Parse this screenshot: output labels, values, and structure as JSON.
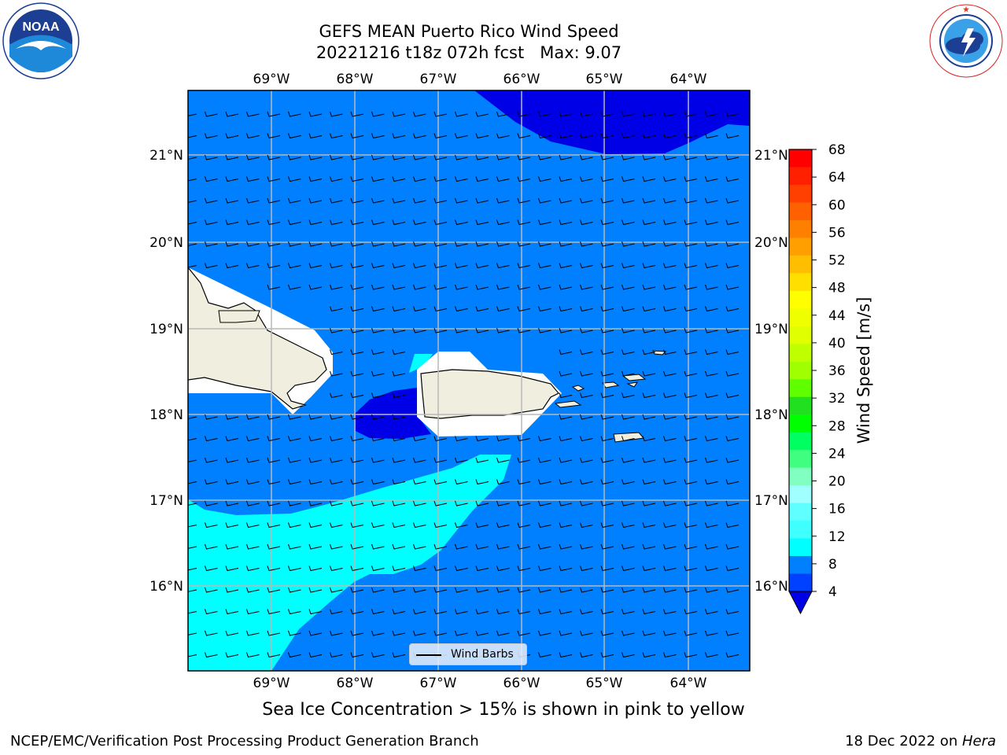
{
  "header": {
    "title_line1": "GEFS MEAN Puerto Rico Wind Speed",
    "title_line2": "20221216 t18z 072h fcst   Max: 9.07"
  },
  "logos": {
    "left": {
      "icon": "noaa-logo",
      "text": "NOAA",
      "ring_text": "NATIONAL OCEANIC AND ATMOSPHERIC ADMINISTRATION · U.S. DEPARTMENT OF COMMERCE"
    },
    "right": {
      "icon": "nws-logo",
      "ring_text": "NATIONAL WEATHER SERVICE"
    }
  },
  "map": {
    "lon_labels": [
      "69°W",
      "68°W",
      "67°W",
      "66°W",
      "65°W",
      "64°W"
    ],
    "lat_labels": [
      "21°N",
      "20°N",
      "19°N",
      "18°N",
      "17°N",
      "16°N"
    ],
    "legend": {
      "label": "Wind Barbs"
    },
    "colors": {
      "ocean_low": "#0080ff",
      "ocean_lowest": "#0000e6",
      "ocean_mid": "#00ffff",
      "ocean_pale": "#40ffff",
      "land": "#efeedf",
      "grid": "#b8b8b8"
    }
  },
  "colorbar": {
    "label": "Wind Speed [m/s]",
    "ticks": [
      "68",
      "64",
      "60",
      "56",
      "52",
      "48",
      "44",
      "40",
      "36",
      "32",
      "28",
      "24",
      "20",
      "16",
      "12",
      "8",
      "4"
    ],
    "colors_top_to_bottom": [
      "#ff0000",
      "#ff2000",
      "#ff4000",
      "#ff6000",
      "#ff8000",
      "#ff9f00",
      "#ffbf00",
      "#ffdf00",
      "#ffff00",
      "#f0ff00",
      "#e0ff00",
      "#c0ff00",
      "#a0ff00",
      "#60ff00",
      "#20e020",
      "#00ff00",
      "#00ff60",
      "#40ff80",
      "#80ffc0",
      "#a0ffff",
      "#60ffff",
      "#40ffff",
      "#00ffff",
      "#0080ff",
      "#0040ff"
    ],
    "extend_color": "#0000e6"
  },
  "caption": "Sea Ice Concentration > 15% is shown in pink to yellow",
  "footer": {
    "left": "NCEP/EMC/Verification Post Processing Product Generation Branch",
    "right_prefix": "18 Dec 2022 on ",
    "right_machine": "Hera"
  }
}
